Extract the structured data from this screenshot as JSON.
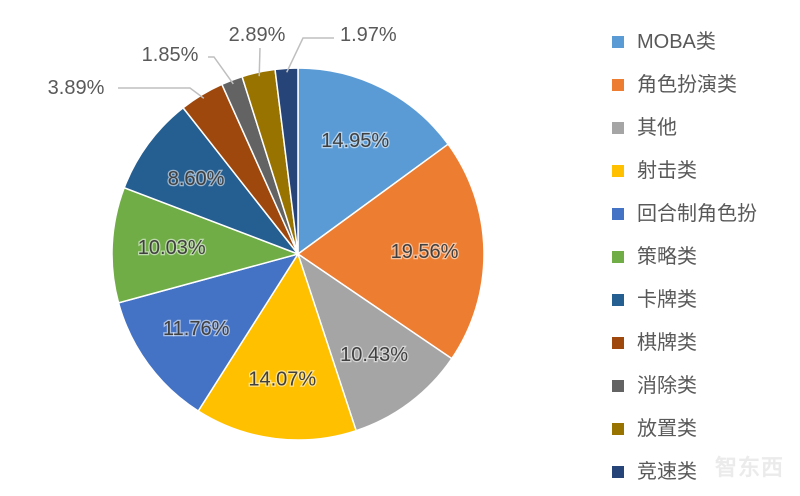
{
  "chart_data": {
    "type": "pie",
    "categories": [
      "MOBA类",
      "角色扮演类",
      "其他",
      "射击类",
      "回合制角色扮",
      "策略类",
      "卡牌类",
      "棋牌类",
      "消除类",
      "放置类",
      "竞速类"
    ],
    "values": [
      14.95,
      19.56,
      10.43,
      14.07,
      11.76,
      10.03,
      8.6,
      3.89,
      1.85,
      2.89,
      1.97
    ],
    "unit": "%",
    "colors": [
      "#5B9BD5",
      "#ED7D31",
      "#A5A5A5",
      "#FFC000",
      "#4472C4",
      "#70AD47",
      "#255E91",
      "#9E480E",
      "#636363",
      "#997300",
      "#264478"
    ],
    "start": "12 o'clock",
    "direction": "clockwise",
    "legend_position": "right"
  },
  "watermark": "智东西"
}
